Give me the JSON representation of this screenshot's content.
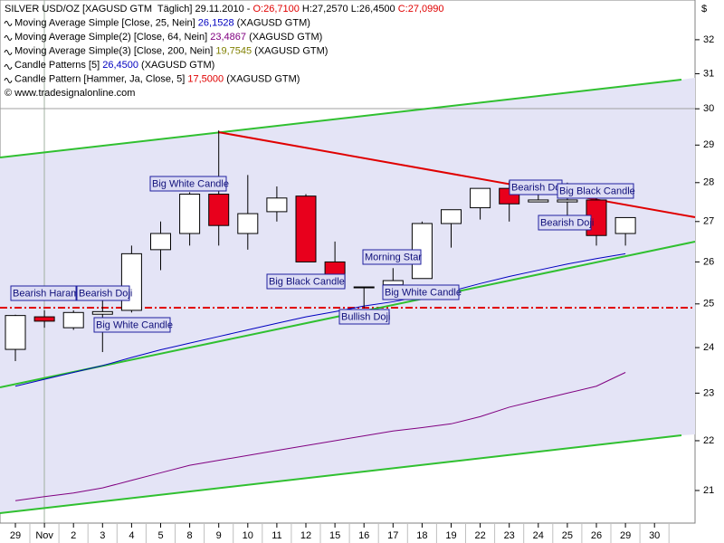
{
  "chart_data": {
    "type": "candlestick",
    "legend": [
      {
        "parts": [
          {
            "text": "SILVER USD/OZ [XAGUSD GTM  Täglich] 29.11.2010 - "
          },
          {
            "text": "O:26,7100",
            "color": "#e00000"
          },
          {
            "text": " H:27,2570 L:26,4500 "
          },
          {
            "text": "C:27,0990",
            "color": "#e00000"
          }
        ]
      },
      {
        "parts": [
          {
            "text": "Moving Average Simple [Close, 25, Nein] "
          },
          {
            "text": "26,1528",
            "color": "#0000c0"
          },
          {
            "text": " (XAGUSD GTM)"
          }
        ]
      },
      {
        "parts": [
          {
            "text": "Moving Average Simple(2) [Close, 64, Nein] "
          },
          {
            "text": "23,4867",
            "color": "#800080"
          },
          {
            "text": " (XAGUSD GTM)"
          }
        ]
      },
      {
        "parts": [
          {
            "text": "Moving Average Simple(3) [Close, 200, Nein] "
          },
          {
            "text": "19,7545",
            "color": "#808000"
          },
          {
            "text": " (XAGUSD GTM)"
          }
        ]
      },
      {
        "parts": [
          {
            "text": "Candle Patterns [5] "
          },
          {
            "text": "26,4500",
            "color": "#0000c0"
          },
          {
            "text": " (XAGUSD GTM)"
          }
        ]
      },
      {
        "parts": [
          {
            "text": "Candle Pattern [Hammer, Ja, Close, 5] "
          },
          {
            "text": "17,5000",
            "color": "#e00000"
          },
          {
            "text": " (XAGUSD GTM)"
          }
        ]
      },
      {
        "parts": [
          {
            "text": "© www.tradesignalonline.com"
          }
        ]
      }
    ],
    "currency": "$",
    "categories": [
      "29",
      "Nov",
      "2",
      "3",
      "4",
      "5",
      "8",
      "9",
      "10",
      "11",
      "12",
      "15",
      "16",
      "17",
      "18",
      "19",
      "22",
      "23",
      "24",
      "25",
      "26",
      "29",
      "30"
    ],
    "open": [
      23.96,
      24.7,
      24.45,
      24.76,
      24.85,
      26.3,
      26.7,
      27.7,
      26.7,
      27.25,
      27.65,
      26.0,
      25.4,
      25.45,
      25.6,
      26.95,
      27.35,
      27.85,
      27.5,
      27.5,
      27.55,
      26.7,
      null
    ],
    "high": [
      24.75,
      24.85,
      24.85,
      25.1,
      26.4,
      27.0,
      27.75,
      29.4,
      28.2,
      27.9,
      27.7,
      26.5,
      25.4,
      25.85,
      27.0,
      27.3,
      27.85,
      28.05,
      27.85,
      28.0,
      27.6,
      27.1,
      null
    ],
    "low": [
      23.7,
      24.45,
      24.4,
      23.9,
      24.8,
      25.8,
      26.4,
      26.4,
      26.3,
      27.0,
      26.0,
      25.35,
      24.9,
      25.3,
      25.6,
      26.35,
      27.05,
      27.0,
      27.5,
      27.1,
      26.4,
      26.4,
      null
    ],
    "close": [
      24.73,
      24.6,
      24.8,
      24.82,
      26.2,
      26.7,
      27.7,
      26.9,
      27.2,
      27.6,
      26.0,
      25.4,
      25.38,
      25.55,
      26.95,
      27.3,
      27.85,
      27.45,
      27.55,
      27.55,
      26.65,
      27.1,
      null
    ],
    "up_color": "#ffffff",
    "down_color": "#e8001c",
    "series": [
      {
        "name": "Moving Average Simple",
        "color": "#0000c0",
        "values": [
          23.15,
          23.3,
          23.45,
          23.6,
          23.78,
          23.95,
          24.1,
          24.25,
          24.4,
          24.55,
          24.7,
          24.82,
          24.95,
          25.05,
          25.18,
          25.3,
          25.48,
          25.65,
          25.8,
          25.95,
          26.08,
          26.2,
          null
        ]
      },
      {
        "name": "Moving Average Simple(2)",
        "color": "#800080",
        "values": [
          20.8,
          20.88,
          20.95,
          21.05,
          21.2,
          21.35,
          21.5,
          21.6,
          21.7,
          21.8,
          21.9,
          22.0,
          22.1,
          22.2,
          22.27,
          22.35,
          22.5,
          22.7,
          22.85,
          23.0,
          23.15,
          23.45,
          null
        ]
      }
    ],
    "annotations": [
      "Bearish Harami",
      "Bearish Doji",
      "Big White Candle",
      "Big White Candle",
      "Big Black Candle",
      "Morning Star",
      "Big White Candle",
      "Bullish Doji",
      "Bearish Doji",
      "Big Black Candle",
      "Bearish Doji"
    ],
    "log_scale": true,
    "ylim": [
      20.37,
      33.21
    ],
    "yticks": [
      21,
      22,
      23,
      24,
      25,
      26,
      27,
      28,
      29,
      30,
      31,
      32
    ]
  }
}
